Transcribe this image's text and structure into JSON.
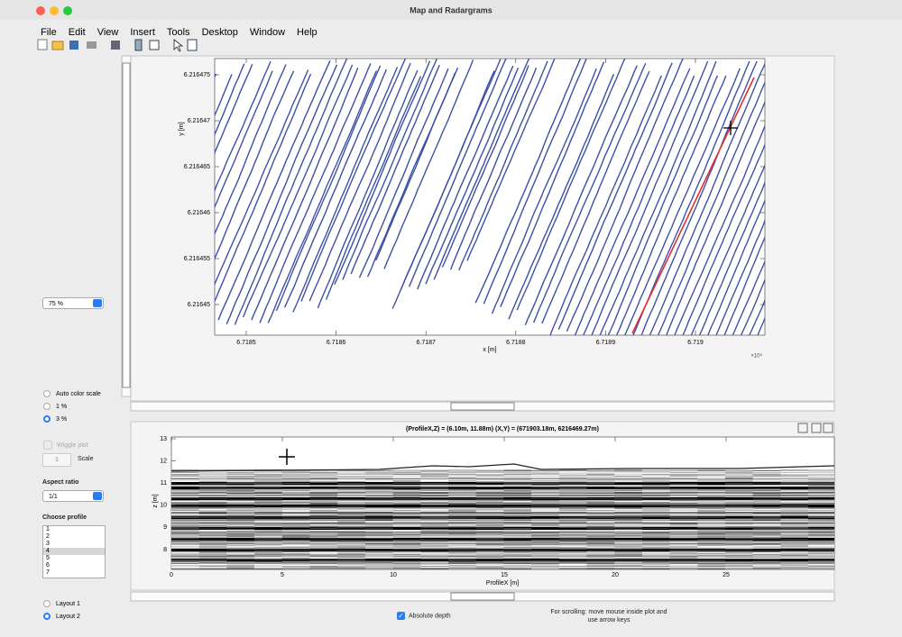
{
  "window": {
    "title": "Map and Radargrams"
  },
  "menu": [
    "File",
    "Edit",
    "View",
    "Insert",
    "Tools",
    "Desktop",
    "Window",
    "Help"
  ],
  "left_panel": {
    "zoom": "75 %",
    "color_scale": [
      "Auto color scale",
      "1 %",
      "3 %"
    ],
    "wiggle": "Wiggle plot",
    "scale_value": "1",
    "scale_label": "Scale",
    "aspect_label": "Aspect ratio",
    "aspect": "1/1",
    "profile_label": "Choose profile",
    "profiles": [
      "1",
      "2",
      "3",
      "4",
      "5",
      "6",
      "7"
    ],
    "layouts": [
      "Layout 1",
      "Layout 2"
    ]
  },
  "map": {
    "y_label": "y [m]",
    "x_label": "x [m]",
    "x_multiplier": "×10⁵",
    "yticks": [
      6.216475,
      6.21647,
      6.216465,
      6.21646,
      6.216455,
      6.21645
    ],
    "xticks": [
      6.7185,
      6.7186,
      6.7187,
      6.7188,
      6.7189,
      6.719
    ]
  },
  "radargram": {
    "title": "(ProfileX,Z) = (6.10m, 11.88m)   (X,Y) = (671903.18m, 6216469.27m)",
    "y_label": "z [m]",
    "x_label": "ProfileX [m]",
    "yticks": [
      13,
      12,
      11,
      10,
      9,
      8
    ],
    "xticks": [
      0,
      5,
      10,
      15,
      20,
      25
    ]
  },
  "footer": {
    "absolute_depth": "Absolute depth",
    "scroll_hint": [
      "For scrolling: move mouse inside plot and",
      "use arrow keys"
    ]
  }
}
